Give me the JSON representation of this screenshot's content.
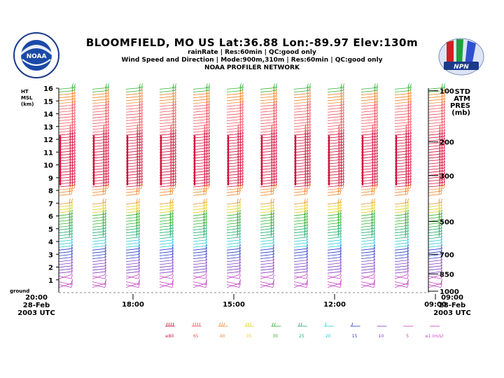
{
  "header": {
    "title": "BLOOMFIELD, MO US  Lat:36.88 Lon:-89.97 Elev:130m",
    "line1": "rainRate | Res:60min |  QC:good only",
    "line2": "Wind Speed and Direction | Mode:900m,310m | Res:60min |  QC:good only",
    "line3": "NOAA PROFILER NETWORK"
  },
  "logos": {
    "left": "NOAA",
    "right": "NPN"
  },
  "chart_data": {
    "type": "wind-barb-time-height",
    "title": "BLOOMFIELD, MO US  Lat:36.88 Lon:-89.97 Elev:130m",
    "left_axis": {
      "label_lines": [
        "HT",
        "MSL",
        "(km)"
      ],
      "ticks": [
        1,
        2,
        3,
        4,
        5,
        6,
        7,
        8,
        9,
        10,
        11,
        12,
        13,
        14,
        15,
        16
      ],
      "ground_label": "ground",
      "ylim": [
        0,
        16
      ]
    },
    "right_axis": {
      "label_lines": [
        "STD",
        "ATM",
        "PRES",
        "(mb)"
      ],
      "ticks": [
        {
          "label": "100",
          "height_km": 15.8
        },
        {
          "label": "200",
          "height_km": 11.8
        },
        {
          "label": "300",
          "height_km": 9.16
        },
        {
          "label": "500",
          "height_km": 5.57
        },
        {
          "label": "700",
          "height_km": 3.0
        },
        {
          "label": "850",
          "height_km": 1.46
        },
        {
          "label": "1000",
          "height_km": 0.11
        }
      ]
    },
    "x_axis": {
      "left_label": [
        "20:00",
        "28-Feb",
        "2003 UTC"
      ],
      "right_label": [
        "09:00",
        "28-Feb",
        "2003 UTC"
      ],
      "ticks": [
        {
          "label": "18:00",
          "hours_before_start": 2
        },
        {
          "label": "15:00",
          "hours_before_start": 5
        },
        {
          "label": "12:00",
          "hours_before_start": 8
        },
        {
          "label": "09:00",
          "hours_before_start": 11
        }
      ],
      "hours_span": 11
    },
    "profiles": {
      "count": 12,
      "note": "hourly wind profiles, time runs right-to-left from 20:00 to 09:00 UTC",
      "data_gap_km": [
        7.0,
        7.6
      ]
    },
    "legend": {
      "speeds": [
        "≥80",
        "65",
        "40",
        "35",
        "30",
        "25",
        "20",
        "15",
        "10",
        "5",
        "≤1 (m/s)"
      ],
      "colors": [
        "#d0103a",
        "#f0505a",
        "#f08a30",
        "#e8d020",
        "#30b030",
        "#20b070",
        "#20c8d8",
        "#2838c8",
        "#8040c0",
        "#c040c0",
        "#c840c8"
      ]
    }
  }
}
